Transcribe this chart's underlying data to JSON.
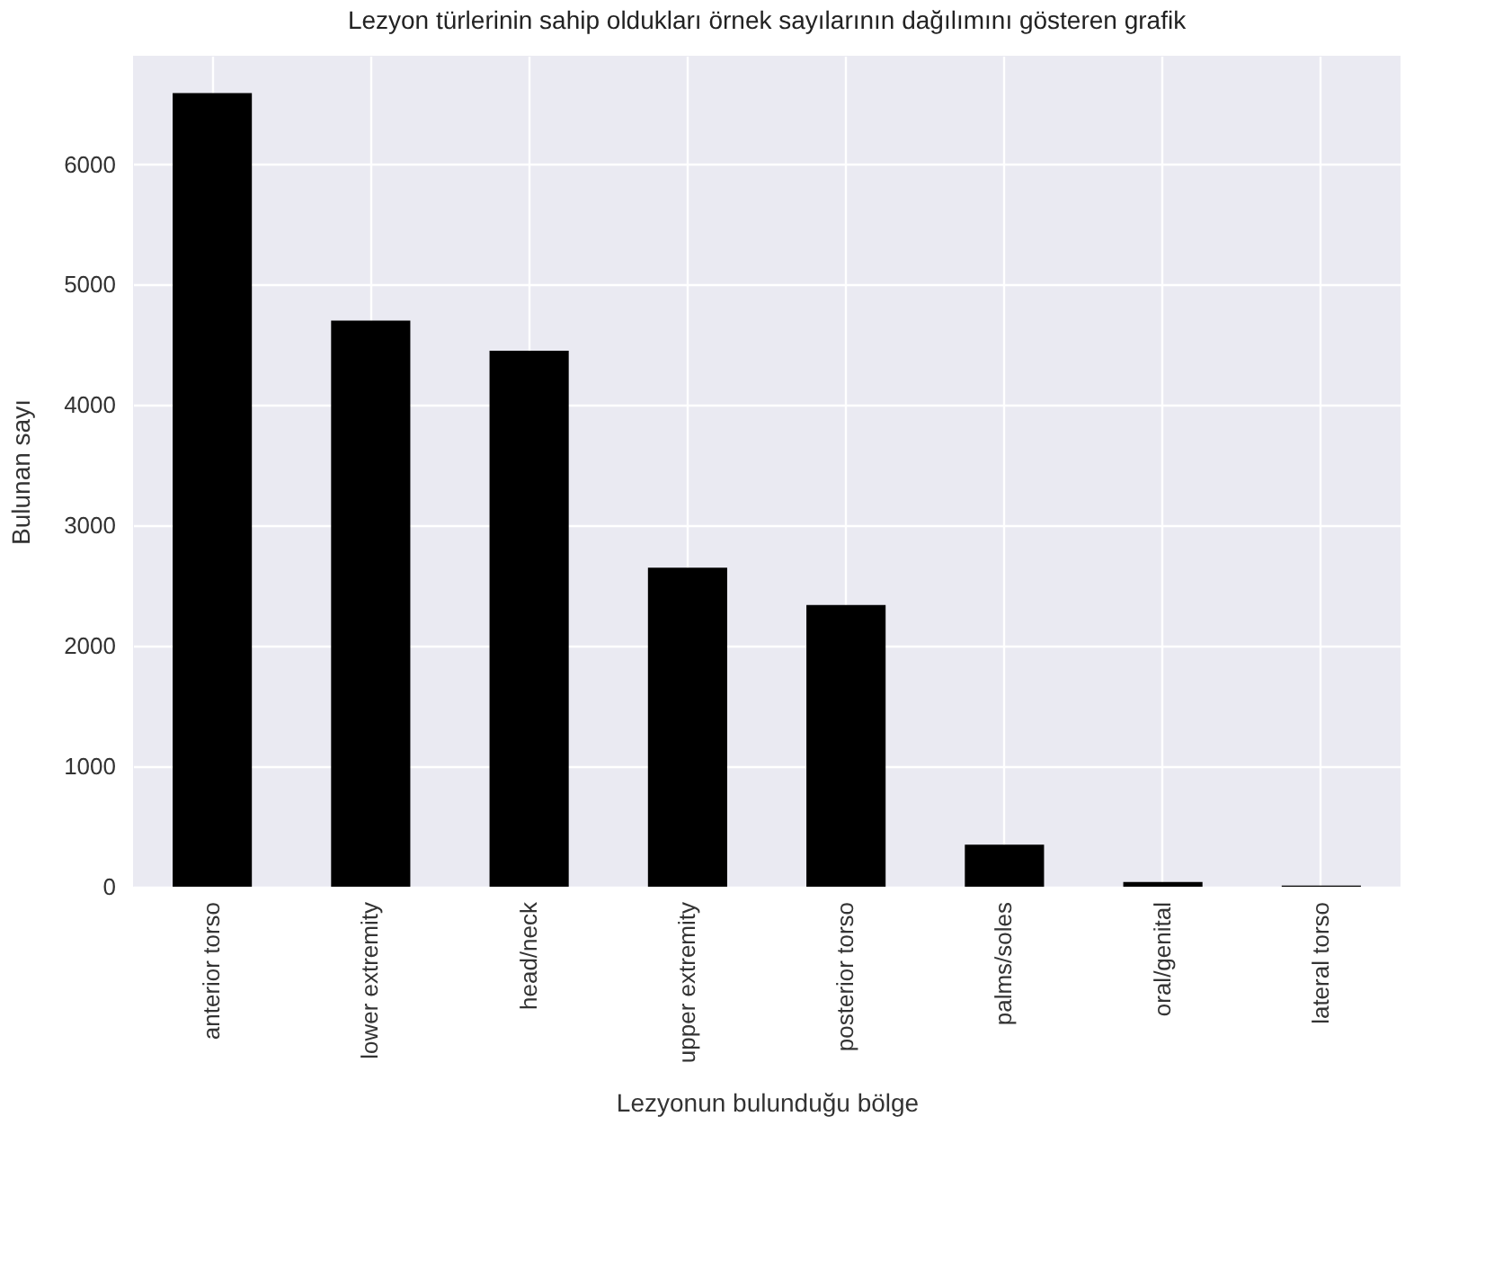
{
  "chart_data": {
    "type": "bar",
    "title": "Lezyon türlerinin sahip oldukları örnek sayılarının dağılımını gösteren grafik",
    "xlabel": "Lezyonun bulunduğu bölge",
    "ylabel": "Bulunan sayı",
    "categories": [
      "anterior torso",
      "lower extremity",
      "head/neck",
      "upper extremity",
      "posterior torso",
      "palms/soles",
      "oral/genital",
      "lateral torso"
    ],
    "values": [
      6590,
      4700,
      4450,
      2650,
      2340,
      350,
      40,
      10
    ],
    "color": "#000000",
    "ylim": [
      0,
      6900
    ],
    "yticks": [
      0,
      1000,
      2000,
      3000,
      4000,
      5000,
      6000
    ],
    "grid": true
  }
}
